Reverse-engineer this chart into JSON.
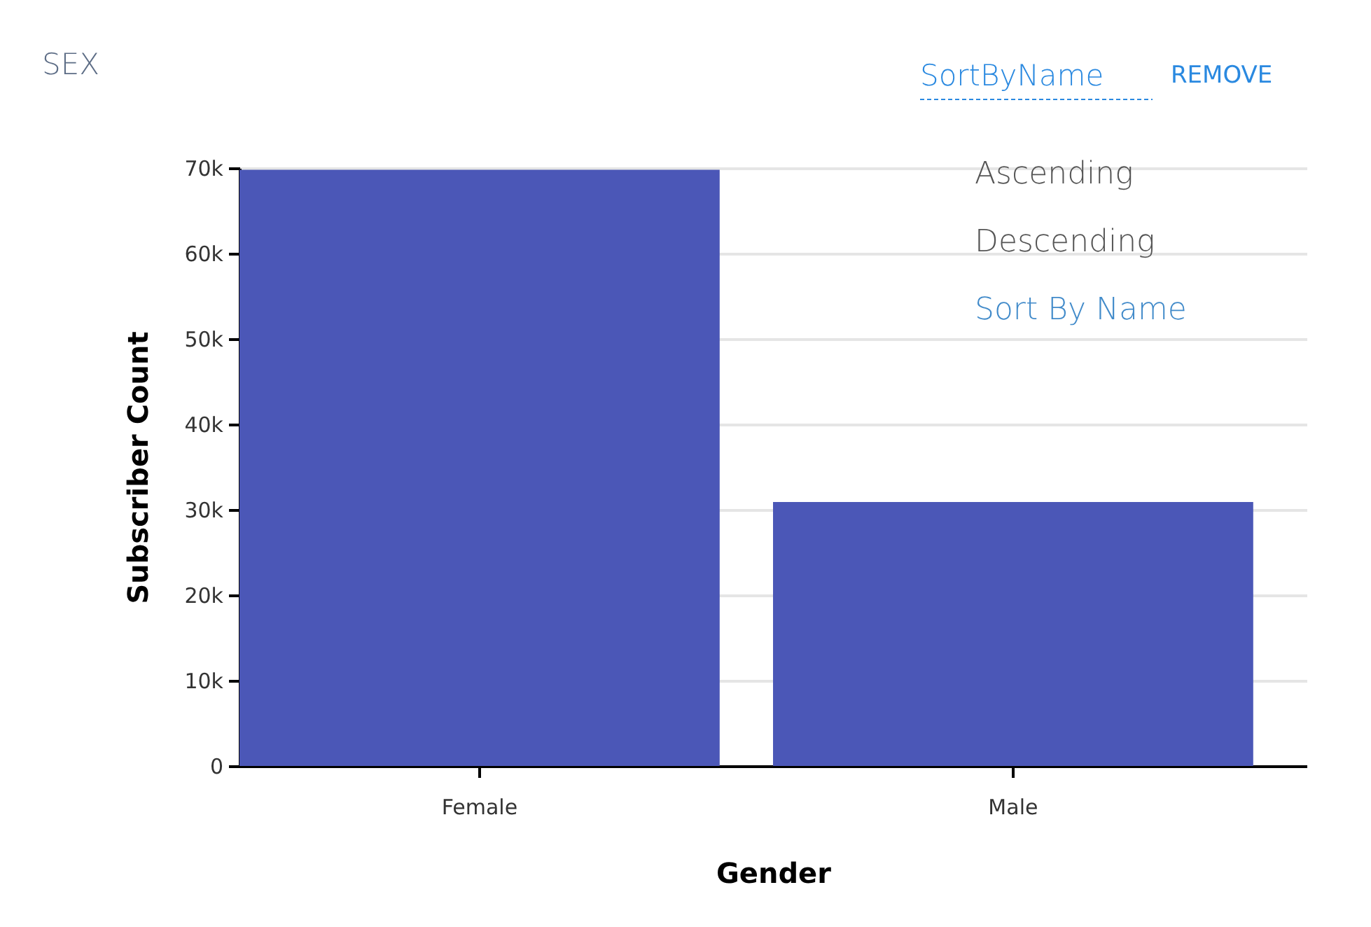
{
  "chart_data": {
    "type": "bar",
    "title": "SEX",
    "xlabel": "Gender",
    "ylabel": "Subscriber Count",
    "categories": [
      "Female",
      "Male"
    ],
    "values": [
      69800,
      30900
    ],
    "color": "#4b57b7",
    "ylim": [
      0,
      70000
    ],
    "yticks": [
      0,
      {
        "value": 10000,
        "label": "10k"
      },
      {
        "value": 20000,
        "label": "20k"
      },
      {
        "value": 30000,
        "label": "30k"
      },
      {
        "value": 40000,
        "label": "40k"
      },
      {
        "value": 50000,
        "label": "50k"
      },
      {
        "value": 60000,
        "label": "60k"
      },
      {
        "value": 70000,
        "label": "70k"
      }
    ],
    "grid": "y",
    "annotations": [
      "SortByName",
      "REMOVE",
      "Ascending",
      "Descending",
      "Sort By Name"
    ]
  }
}
